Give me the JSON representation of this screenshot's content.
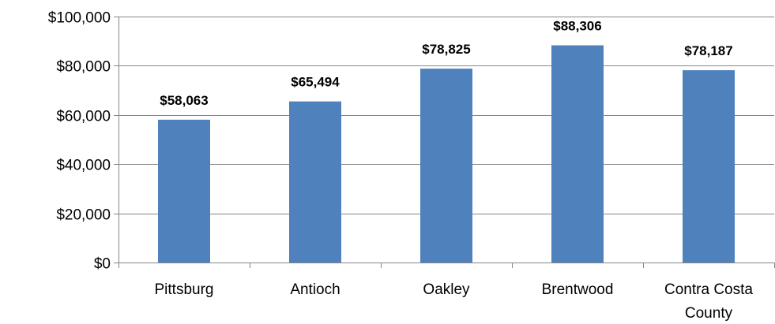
{
  "chart_data": {
    "type": "bar",
    "categories": [
      "Pittsburg",
      "Antioch",
      "Oakley",
      "Brentwood",
      "Contra Costa County"
    ],
    "category_lines": [
      [
        "Pittsburg"
      ],
      [
        "Antioch"
      ],
      [
        "Oakley"
      ],
      [
        "Brentwood"
      ],
      [
        "Contra Costa",
        "County"
      ]
    ],
    "values": [
      58063,
      65494,
      78825,
      88306,
      78187
    ],
    "data_labels": [
      "$58,063",
      "$65,494",
      "$78,825",
      "$88,306",
      "$78,187"
    ],
    "y_ticks": [
      0,
      20000,
      40000,
      60000,
      80000,
      100000
    ],
    "y_tick_labels": [
      "$0",
      "$20,000",
      "$40,000",
      "$60,000",
      "$80,000",
      "$100,000"
    ],
    "ylim": [
      0,
      100000
    ],
    "grid": true,
    "legend": "none",
    "bar_color": "#4F81BD"
  }
}
